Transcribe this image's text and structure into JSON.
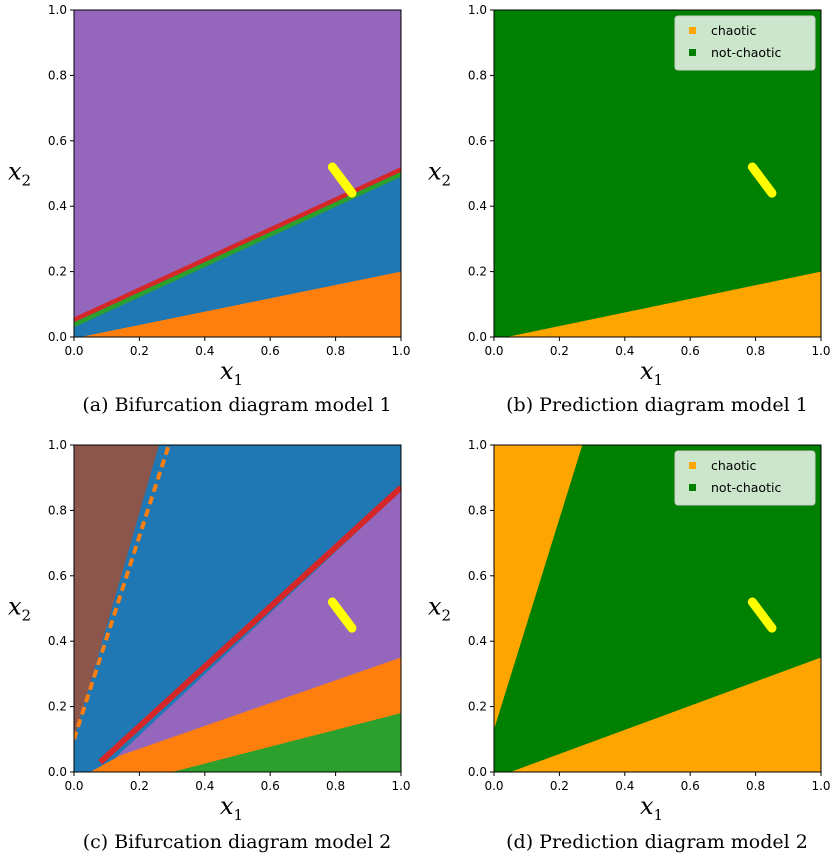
{
  "colors": {
    "purple": "#9467bd",
    "blue": "#1f77b4",
    "orange": "#ff7f0e",
    "red": "#d62728",
    "green": "#2ca02c",
    "brown": "#8c564b",
    "pink": "#e377c2",
    "yellow": "#ffff00",
    "chaotic": "#ffa500",
    "not_chaotic": "#008000"
  },
  "chart_data": [
    {
      "type": "heatmap",
      "panel": "a",
      "caption": "(a) Bifurcation diagram model 1",
      "xlabel_var": "x",
      "xlabel_sub": "1",
      "ylabel_var": "x",
      "ylabel_sub": "2",
      "xlim": [
        0,
        1
      ],
      "ylim": [
        0,
        1
      ],
      "xticks": [
        "0.0",
        "0.2",
        "0.4",
        "0.6",
        "0.8",
        "1.0"
      ],
      "yticks": [
        "0.0",
        "0.2",
        "0.4",
        "0.6",
        "0.8",
        "1.0"
      ],
      "regions": [
        {
          "color": "purple",
          "polygon": [
            [
              0,
              0
            ],
            [
              1,
              0
            ],
            [
              1,
              1
            ],
            [
              0,
              1
            ]
          ]
        },
        {
          "color": "red",
          "polygon": [
            [
              0,
              0
            ],
            [
              1,
              0
            ],
            [
              1,
              0.52
            ],
            [
              0,
              0.06
            ]
          ]
        },
        {
          "color": "green",
          "polygon": [
            [
              0,
              0
            ],
            [
              1,
              0
            ],
            [
              1,
              0.505
            ],
            [
              0,
              0.045
            ]
          ]
        },
        {
          "color": "blue",
          "polygon": [
            [
              0,
              0
            ],
            [
              1,
              0
            ],
            [
              1,
              0.49
            ],
            [
              0,
              0.03
            ]
          ]
        },
        {
          "color": "orange",
          "polygon": [
            [
              0,
              0
            ],
            [
              1,
              0
            ],
            [
              1,
              0.2
            ],
            [
              0.02,
              0.0
            ]
          ]
        }
      ],
      "markers": [
        {
          "color": "yellow",
          "from": [
            0.79,
            0.52
          ],
          "to": [
            0.85,
            0.44
          ]
        }
      ],
      "legend": null
    },
    {
      "type": "heatmap",
      "panel": "b",
      "caption": "(b) Prediction diagram model 1",
      "xlabel_var": "x",
      "xlabel_sub": "1",
      "ylabel_var": "x",
      "ylabel_sub": "2",
      "xlim": [
        0,
        1
      ],
      "ylim": [
        0,
        1
      ],
      "xticks": [
        "0.0",
        "0.2",
        "0.4",
        "0.6",
        "0.8",
        "1.0"
      ],
      "yticks": [
        "0.0",
        "0.2",
        "0.4",
        "0.6",
        "0.8",
        "1.0"
      ],
      "regions": [
        {
          "color": "not_chaotic",
          "polygon": [
            [
              0,
              0
            ],
            [
              1,
              0
            ],
            [
              1,
              1
            ],
            [
              0,
              1
            ]
          ]
        },
        {
          "color": "chaotic",
          "polygon": [
            [
              0.04,
              0
            ],
            [
              1,
              0
            ],
            [
              1,
              0.2
            ]
          ]
        }
      ],
      "markers": [
        {
          "color": "yellow",
          "from": [
            0.79,
            0.52
          ],
          "to": [
            0.85,
            0.44
          ]
        }
      ],
      "legend": {
        "placement": "top-right",
        "entries": [
          {
            "label": "chaotic",
            "color": "chaotic"
          },
          {
            "label": "not-chaotic",
            "color": "not_chaotic"
          }
        ]
      }
    },
    {
      "type": "heatmap",
      "panel": "c",
      "caption": "(c) Bifurcation diagram model 2",
      "xlabel_var": "x",
      "xlabel_sub": "1",
      "ylabel_var": "x",
      "ylabel_sub": "2",
      "xlim": [
        0,
        1
      ],
      "ylim": [
        0,
        1
      ],
      "xticks": [
        "0.0",
        "0.2",
        "0.4",
        "0.6",
        "0.8",
        "1.0"
      ],
      "yticks": [
        "0.0",
        "0.2",
        "0.4",
        "0.6",
        "0.8",
        "1.0"
      ],
      "regions": [
        {
          "color": "blue",
          "polygon": [
            [
              0,
              0
            ],
            [
              1,
              0
            ],
            [
              1,
              1
            ],
            [
              0,
              1
            ]
          ]
        },
        {
          "color": "brown",
          "polygon": [
            [
              0,
              0.1
            ],
            [
              0,
              1
            ],
            [
              0.26,
              1
            ]
          ]
        },
        {
          "color": "purple",
          "polygon": [
            [
              0.08,
              0
            ],
            [
              1,
              0
            ],
            [
              1,
              0.86
            ]
          ]
        },
        {
          "color": "orange",
          "polygon": [
            [
              0.05,
              0
            ],
            [
              1,
              0
            ],
            [
              1,
              0.35
            ],
            [
              0.14,
              0.05
            ]
          ]
        },
        {
          "color": "green",
          "polygon": [
            [
              0.3,
              0
            ],
            [
              1,
              0
            ],
            [
              1,
              0.18
            ]
          ]
        }
      ],
      "lines": [
        {
          "color": "red",
          "width": 0.018,
          "from": [
            0.08,
            0.03
          ],
          "to": [
            1,
            0.87
          ]
        },
        {
          "color": "orange",
          "width": 0.012,
          "dashed": true,
          "from": [
            0,
            0.1
          ],
          "to": [
            0.29,
            1
          ]
        }
      ],
      "markers": [
        {
          "color": "yellow",
          "from": [
            0.79,
            0.52
          ],
          "to": [
            0.85,
            0.44
          ]
        }
      ],
      "legend": null
    },
    {
      "type": "heatmap",
      "panel": "d",
      "caption": "(d) Prediction diagram model 2",
      "xlabel_var": "x",
      "xlabel_sub": "1",
      "ylabel_var": "x",
      "ylabel_sub": "2",
      "xlim": [
        0,
        1
      ],
      "ylim": [
        0,
        1
      ],
      "xticks": [
        "0.0",
        "0.2",
        "0.4",
        "0.6",
        "0.8",
        "1.0"
      ],
      "yticks": [
        "0.0",
        "0.2",
        "0.4",
        "0.6",
        "0.8",
        "1.0"
      ],
      "regions": [
        {
          "color": "not_chaotic",
          "polygon": [
            [
              0,
              0
            ],
            [
              1,
              0
            ],
            [
              1,
              1
            ],
            [
              0,
              1
            ]
          ]
        },
        {
          "color": "chaotic",
          "polygon": [
            [
              0,
              0.13
            ],
            [
              0,
              1
            ],
            [
              0.27,
              1
            ]
          ]
        },
        {
          "color": "chaotic",
          "polygon": [
            [
              0.05,
              0
            ],
            [
              1,
              0
            ],
            [
              1,
              0.35
            ]
          ]
        }
      ],
      "markers": [
        {
          "color": "yellow",
          "from": [
            0.79,
            0.52
          ],
          "to": [
            0.85,
            0.44
          ]
        }
      ],
      "legend": {
        "placement": "top-right",
        "entries": [
          {
            "label": "chaotic",
            "color": "chaotic"
          },
          {
            "label": "not-chaotic",
            "color": "not_chaotic"
          }
        ]
      }
    }
  ]
}
